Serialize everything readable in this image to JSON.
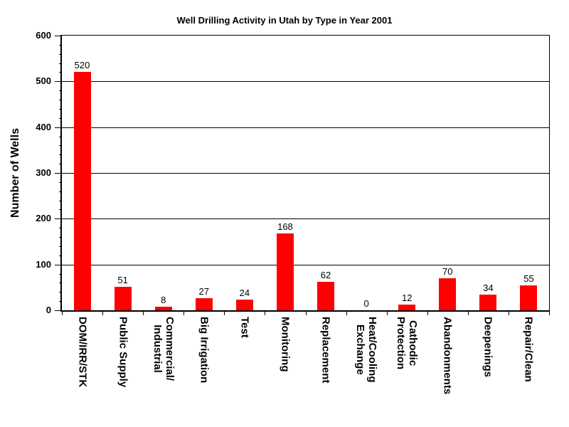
{
  "chart_data": {
    "type": "bar",
    "title": "Well Drilling Activity in Utah by Type in Year 2001",
    "xlabel": "",
    "ylabel": "Number of Wells",
    "categories": [
      "DOM/IRR/STK",
      "Public Supply",
      "Commercial/\nIndustrial",
      "Big Irrigation",
      "Test",
      "Monitoring",
      "Replacement",
      "Heat/Cooling\nExchange",
      "Cathodic\nProtection",
      "Abandonments",
      "Deepenings",
      "Repair/Clean"
    ],
    "values": [
      520,
      51,
      8,
      27,
      24,
      168,
      62,
      0,
      12,
      70,
      34,
      55
    ],
    "ylim": [
      0,
      600
    ],
    "yticks": [
      0,
      100,
      200,
      300,
      400,
      500,
      600
    ],
    "ytick_interval": 100,
    "y_minor_tick_interval": 20,
    "grid": true,
    "legend": false,
    "data_labels": true,
    "bar_color": "#FF0000",
    "axis_color": "#000000",
    "text_color": "#000000",
    "background_color": "#FFFFFF"
  }
}
